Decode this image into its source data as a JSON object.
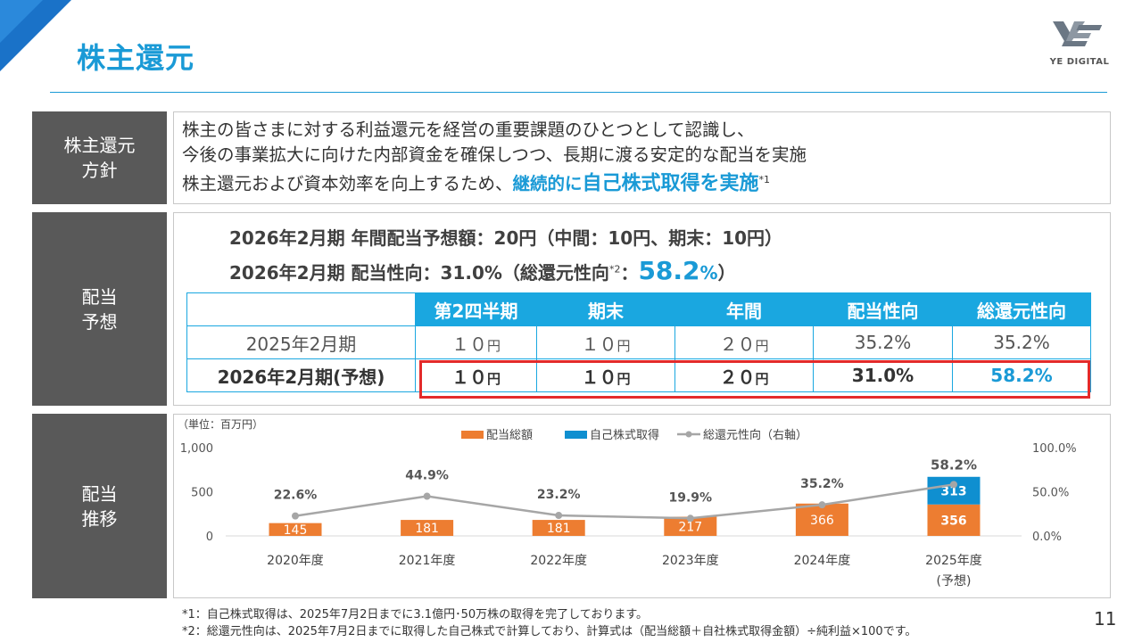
{
  "page": {
    "title": "株主還元",
    "logo_text": "YE DIGITAL",
    "page_number": "11"
  },
  "policy": {
    "label_line1": "株主還元",
    "label_line2": "方針",
    "line1": "株主の皆さまに対する利益還元を経営の重要課題のひとつとして認識し、",
    "line2": "今後の事業拡大に向けた内部資金を確保しつつ、長期に渡る安定的な配当を実施",
    "line3_prefix": "株主還元および資本効率を向上するため、",
    "line3_highlight_a": "継続的に",
    "line3_highlight_b": "自己株式取得を実施",
    "line3_sup": "*1"
  },
  "forecast": {
    "label_line1": "配当",
    "label_line2": "予想",
    "line1": "2026年2月期 年間配当予想額：20円（中間：10円、期末：10円）",
    "line2_prefix": "2026年2月期 配当性向：31.0%（総還元性向",
    "line2_sup": "*2",
    "line2_colon": "：",
    "line2_value": "58.2",
    "line2_pct": "%",
    "line2_suffix": "）",
    "table": {
      "headers": [
        "",
        "第2四半期",
        "期末",
        "年間",
        "配当性向",
        "総還元性向"
      ],
      "rows": [
        {
          "period": "2025年2月期",
          "q2": "１０",
          "q2_unit": "円",
          "ye": "１０",
          "ye_unit": "円",
          "annual": "２０",
          "annual_unit": "円",
          "payout": "35.2%",
          "total": "35.2%"
        },
        {
          "period": "2026年2月期(予想)",
          "q2": "１０",
          "q2_unit": "円",
          "ye": "１０",
          "ye_unit": "円",
          "annual": "２０",
          "annual_unit": "円",
          "payout": "31.0%",
          "total": "58.2%"
        }
      ]
    }
  },
  "history": {
    "label_line1": "配当",
    "label_line2": "推移"
  },
  "chart_data": {
    "type": "bar",
    "stacked": true,
    "unit_label": "（単位：百万円）",
    "categories": [
      "2020年度",
      "2021年度",
      "2022年度",
      "2023年度",
      "2024年度",
      "2025年度"
    ],
    "category_sub": [
      "",
      "",
      "",
      "",
      "",
      "(予想)"
    ],
    "series": [
      {
        "name": "配当総額",
        "color": "#ed7d31",
        "values": [
          145,
          181,
          181,
          217,
          366,
          356
        ]
      },
      {
        "name": "自己株式取得",
        "color": "#0f8fd0",
        "values": [
          0,
          0,
          0,
          0,
          0,
          313
        ]
      }
    ],
    "line_series": {
      "name": "総還元性向（右軸）",
      "color": "#a6a6a6",
      "values": [
        22.6,
        44.9,
        23.2,
        19.9,
        35.2,
        58.2
      ],
      "labels": [
        "22.6%",
        "44.9%",
        "23.2%",
        "19.9%",
        "35.2%",
        "58.2%"
      ]
    },
    "y_left": {
      "min": 0,
      "max": 1000,
      "ticks": [
        "0",
        "500",
        "1,000"
      ],
      "tick_values": [
        0,
        500,
        1000
      ]
    },
    "y_right": {
      "min": 0,
      "max": 100,
      "ticks": [
        "0.0%",
        "50.0%",
        "100.0%"
      ],
      "tick_values": [
        0,
        50,
        100
      ]
    },
    "legend_position": "top-center",
    "grid": false
  },
  "footnotes": {
    "note1": "*1：自己株式取得は、2025年7月2日までに3.1億円･50万株の取得を完了しております。",
    "note2": "*2：総還元性向は、2025年7月2日までに取得した自己株式で計算しており、計算式は（配当総額＋自社株式取得金額）÷純利益×100です。"
  },
  "colors": {
    "accent": "#1a9ad6",
    "label_bg": "#595959",
    "table_header": "#1aa7e0",
    "highlight_box": "#e32a2a"
  }
}
